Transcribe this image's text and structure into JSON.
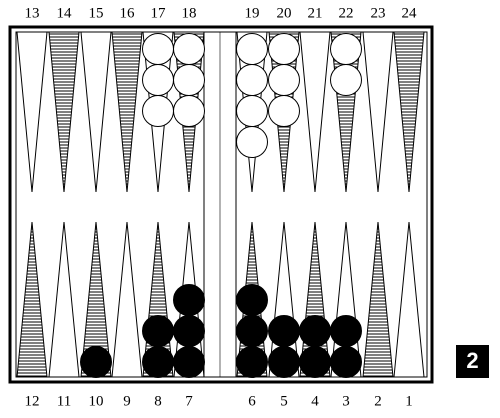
{
  "board": {
    "top_points": [
      {
        "label": "13"
      },
      {
        "label": "14"
      },
      {
        "label": "15"
      },
      {
        "label": "16"
      },
      {
        "label": "17",
        "checkers": 3,
        "player": "white"
      },
      {
        "label": "18",
        "checkers": 3,
        "player": "white"
      },
      {
        "label": "19",
        "checkers": 4,
        "player": "white"
      },
      {
        "label": "20",
        "checkers": 3,
        "player": "white"
      },
      {
        "label": "21"
      },
      {
        "label": "22",
        "checkers": 2,
        "player": "white"
      },
      {
        "label": "23"
      },
      {
        "label": "24"
      }
    ],
    "bottom_points": [
      {
        "label": "12"
      },
      {
        "label": "11"
      },
      {
        "label": "10",
        "checkers": 1,
        "player": "black"
      },
      {
        "label": "9"
      },
      {
        "label": "8",
        "checkers": 2,
        "player": "black"
      },
      {
        "label": "7",
        "checkers": 3,
        "player": "black"
      },
      {
        "label": "6",
        "checkers": 3,
        "player": "black"
      },
      {
        "label": "5",
        "checkers": 2,
        "player": "black"
      },
      {
        "label": "4",
        "checkers": 2,
        "player": "black"
      },
      {
        "label": "3",
        "checkers": 2,
        "player": "black"
      },
      {
        "label": "2"
      },
      {
        "label": "1"
      }
    ],
    "players": {
      "white": "#ffffff",
      "black": "#000000"
    },
    "cube": 2
  }
}
